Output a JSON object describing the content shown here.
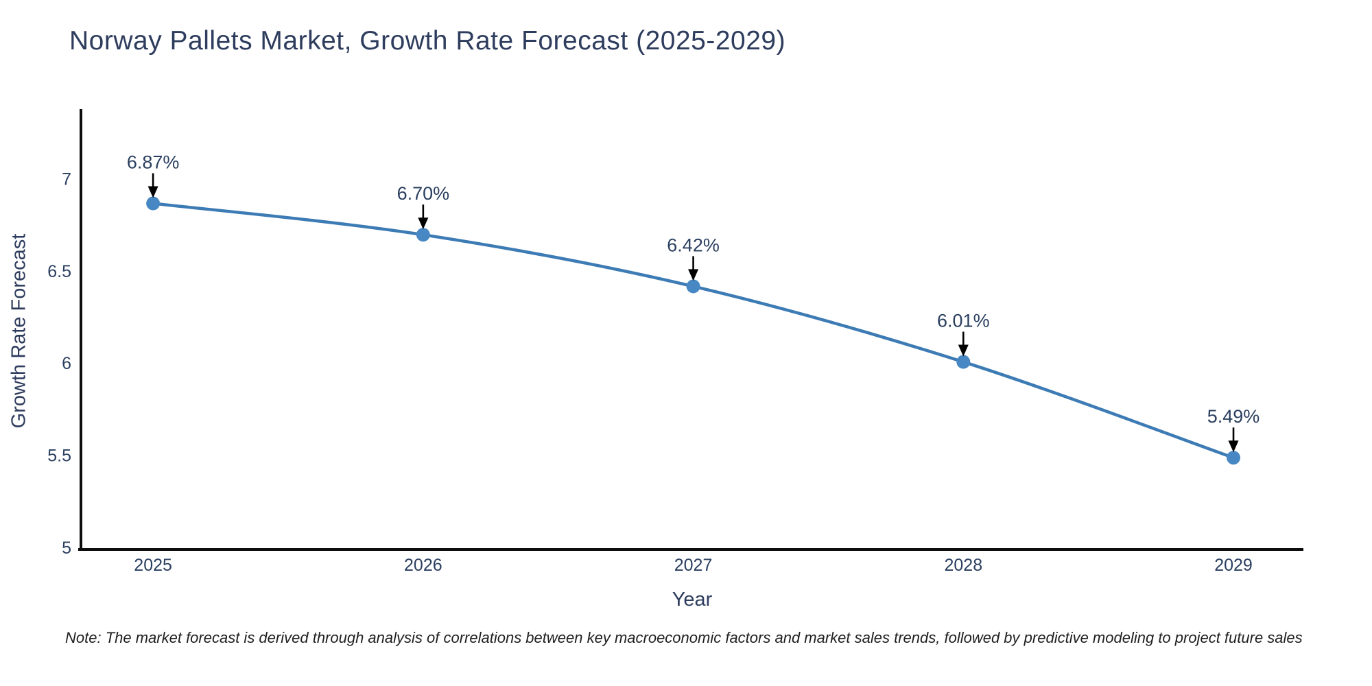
{
  "chart_data": {
    "type": "line",
    "title": "Norway Pallets Market, Growth Rate Forecast (2025-2029)",
    "xlabel": "Year",
    "ylabel": "Growth Rate Forecast",
    "categories": [
      2025,
      2026,
      2027,
      2028,
      2029
    ],
    "values": [
      6.87,
      6.7,
      6.42,
      6.01,
      5.49
    ],
    "series": [
      {
        "name": "Growth Rate Forecast",
        "values": [
          6.87,
          6.7,
          6.42,
          6.01,
          5.49
        ]
      }
    ],
    "point_labels": [
      "6.87%",
      "6.70%",
      "6.42%",
      "6.01%",
      "5.49%"
    ],
    "x_tick_labels": [
      "2025",
      "2026",
      "2027",
      "2028",
      "2029"
    ],
    "y_ticks": [
      5,
      5.5,
      6,
      6.5,
      7
    ],
    "y_tick_labels": [
      "5",
      "5.5",
      "6",
      "6.5",
      "7"
    ],
    "x_range": [
      2024.733,
      2029.259
    ],
    "y_range": [
      4.992,
      7.382
    ],
    "grid": false,
    "legend": "none",
    "line_shape": "spline",
    "marker": "circle"
  },
  "note": "Note: The market forecast is derived through analysis of correlations between key macroeconomic factors and market sales trends, followed by predictive modeling to project future sales",
  "colors": {
    "background": "#ffffff",
    "line": "#3d7bb5",
    "marker": "#4787c3",
    "axis": "#0d0d0d",
    "tick_text": "#2a3f5f",
    "title_text": "#2e3c5d",
    "annotation_text": "#2a3f5f",
    "annotation_arrow": "#000000",
    "note_text": "#1f1f1f"
  }
}
